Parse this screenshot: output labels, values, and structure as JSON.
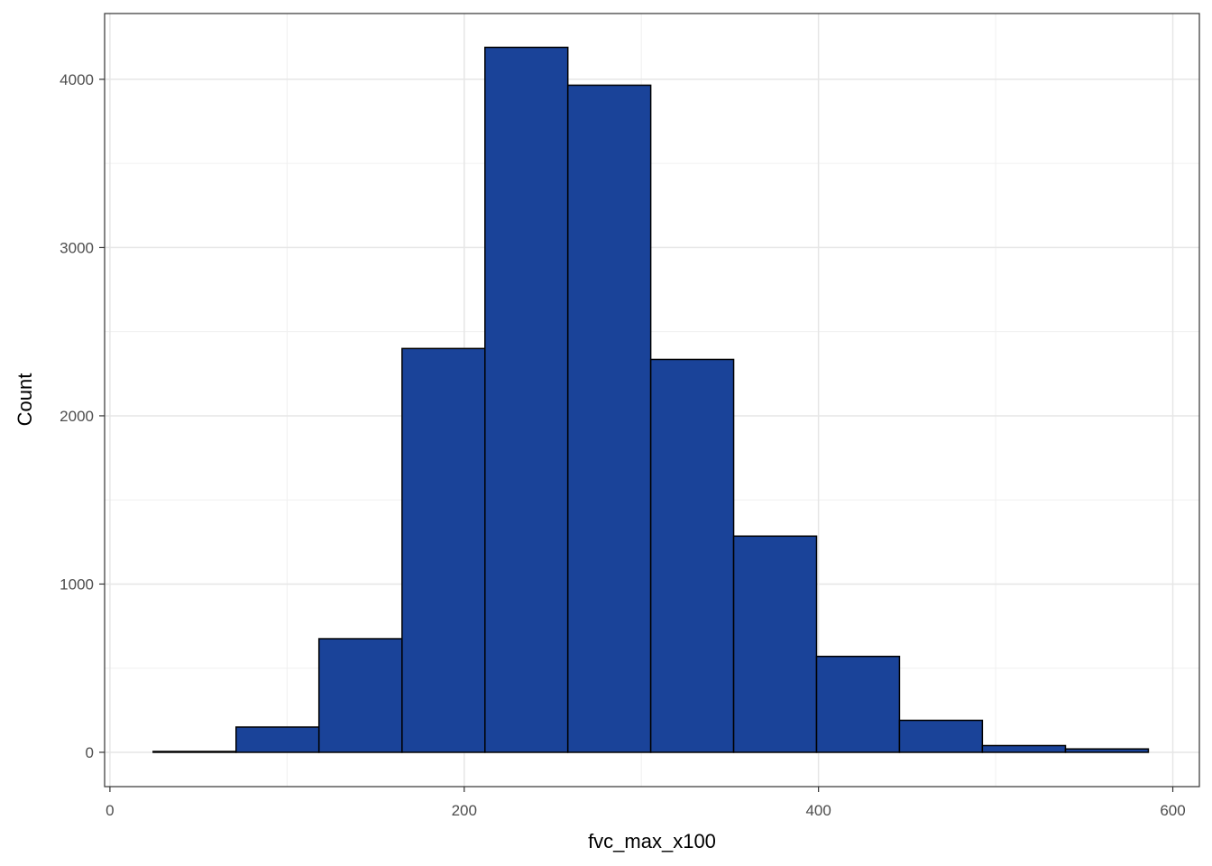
{
  "chart_data": {
    "type": "histogram",
    "x_label": "fvc_max_x100",
    "y_label": "Count",
    "bins": [
      24.4,
      71.2,
      118.0,
      164.9,
      211.7,
      258.5,
      305.3,
      352.1,
      398.9,
      445.7,
      492.5,
      539.4,
      586.2
    ],
    "values": [
      5,
      150,
      675,
      2400,
      4190,
      3965,
      2335,
      1285,
      570,
      190,
      40,
      20
    ],
    "color": "#1a4399",
    "edge_color": "#000000",
    "xlim": [
      -3,
      615
    ],
    "ylim": [
      -204,
      4391
    ],
    "xticks": [
      0,
      200,
      400,
      600
    ],
    "yticks": [
      0,
      1000,
      2000,
      3000,
      4000
    ],
    "x_minor_ticks": [
      100,
      300,
      500
    ],
    "y_minor_ticks": [
      500,
      1500,
      2500,
      3500
    ],
    "grid": true
  }
}
